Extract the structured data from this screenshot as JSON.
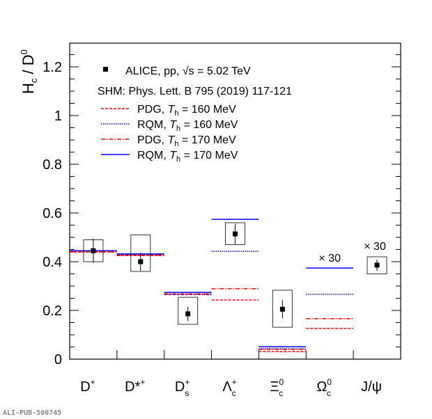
{
  "chart_data": {
    "type": "scatter",
    "ylabel": {
      "base": "H",
      "sub": "c",
      "mid": " / D",
      "sup": "0"
    },
    "ylim": [
      0,
      1.3
    ],
    "yticks": [
      "0",
      "0.2",
      "0.4",
      "0.6",
      "0.8",
      "1",
      "1.2"
    ],
    "ytick_values": [
      0,
      0.2,
      0.4,
      0.6,
      0.8,
      1.0,
      1.2
    ],
    "categories": [
      {
        "base": "D",
        "sup": "+",
        "sub": ""
      },
      {
        "base": "D*",
        "sup": "+",
        "sub": ""
      },
      {
        "base": "D",
        "sup": "+",
        "sub": "s"
      },
      {
        "base": "Λ",
        "sup": "+",
        "sub": "c"
      },
      {
        "base": "Ξ",
        "sup": "0",
        "sub": "c"
      },
      {
        "base": "Ω",
        "sup": "0",
        "sub": "c"
      },
      {
        "base": "J/ψ",
        "sup": "",
        "sub": ""
      }
    ],
    "data": {
      "name": "ALICE, pp, √s = 5.02 TeV",
      "points": [
        {
          "cat": 0,
          "y": 0.445,
          "stat": 0.05,
          "syst_lo": 0.4,
          "syst_hi": 0.49
        },
        {
          "cat": 1,
          "y": 0.4,
          "stat": 0.037,
          "syst_lo": 0.36,
          "syst_hi": 0.51
        },
        {
          "cat": 2,
          "y": 0.186,
          "stat": 0.029,
          "syst_lo": 0.143,
          "syst_hi": 0.254
        },
        {
          "cat": 3,
          "y": 0.514,
          "stat": 0.042,
          "syst_lo": 0.47,
          "syst_hi": 0.56
        },
        {
          "cat": 4,
          "y": 0.205,
          "stat": 0.037,
          "syst_lo": 0.131,
          "syst_hi": 0.283
        },
        {
          "cat": 6,
          "y": 0.386,
          "stat": 0.023,
          "syst_lo": 0.35,
          "syst_hi": 0.42
        }
      ]
    },
    "models": [
      {
        "name": "PDG",
        "T": "160 MeV",
        "color": "#ff0000",
        "style": "dashed",
        "values": [
          0.44,
          0.425,
          0.265,
          0.243,
          0.031,
          0.126,
          null
        ]
      },
      {
        "name": "RQM",
        "T": "160 MeV",
        "color": "#0000ff",
        "style": "dotted",
        "values": [
          0.445,
          0.43,
          0.265,
          0.443,
          0.043,
          0.266,
          null
        ]
      },
      {
        "name": "PDG",
        "T": "170 MeV",
        "color": "#ff0000",
        "style": "dashdot",
        "values": [
          0.44,
          0.427,
          0.268,
          0.289,
          0.04,
          0.166,
          null
        ]
      },
      {
        "name": "RQM",
        "T": "170 MeV",
        "color": "#0000ff",
        "style": "solid",
        "values": [
          0.445,
          0.432,
          0.274,
          0.574,
          0.051,
          0.374,
          null
        ]
      }
    ],
    "annotations": [
      {
        "cat": 5,
        "text": "× 30"
      },
      {
        "cat": 6,
        "text": "× 30"
      }
    ],
    "legend": {
      "placement": "top-left",
      "data_label": "ALICE, pp, √s = 5.02 TeV",
      "model_header": "SHM: Phys. Lett. B 795 (2019) 117-121",
      "model_labels": [
        "PDG, T_h = 160 MeV",
        "RQM, T_h = 160 MeV",
        "PDG, T_h = 170 MeV",
        "RQM, T_h = 170 MeV"
      ]
    }
  },
  "watermark": "ALI-PUB-500745"
}
